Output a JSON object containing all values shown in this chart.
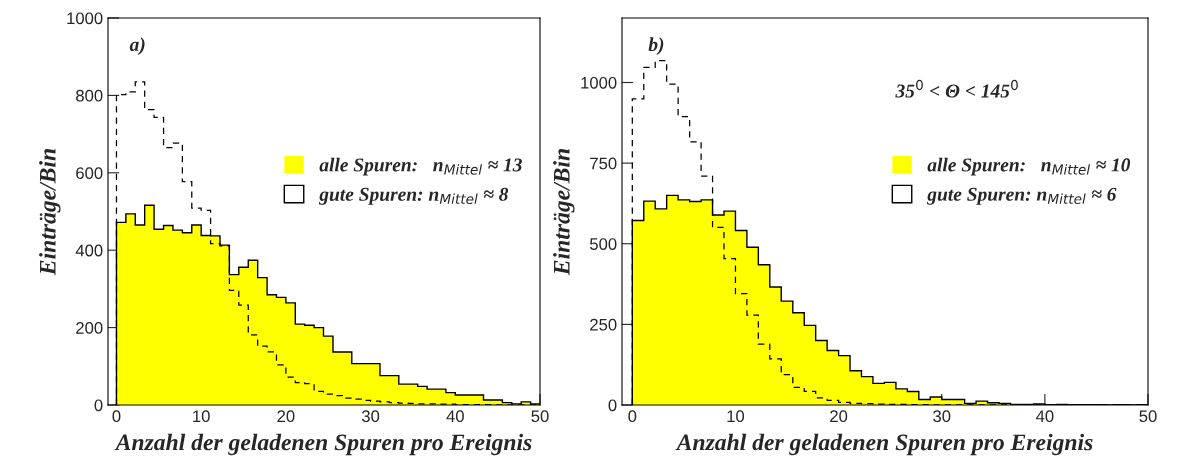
{
  "chart_data": [
    {
      "type": "histogram",
      "ylabel": "Einträge/Bin",
      "xlabel": "Anzahl der geladenen Spuren pro Ereignis",
      "bins": [
        0,
        1.11,
        2.22,
        3.33,
        4.44,
        5.56,
        6.67,
        7.78,
        8.89,
        10,
        11.11,
        12.22,
        13.33,
        14.44,
        15.56,
        16.67,
        17.78,
        18.89,
        20,
        21.11,
        22.22,
        23.33,
        24.44,
        25.56,
        26.67,
        27.78,
        28.89,
        30,
        31.11,
        32.22,
        33.33,
        34.44,
        35.56,
        36.67,
        37.78,
        38.89,
        40,
        41.11,
        42.22,
        43.33,
        44.44,
        45.56,
        46.67,
        47.78,
        48.89,
        50
      ],
      "series": [
        {
          "name": "alle Spuren:   n$_{Mittel}$ ≈ 13",
          "color": "#ffff00",
          "line_style": "solid",
          "values": [
            472,
            494,
            465,
            516,
            454,
            464,
            452,
            445,
            465,
            438,
            437,
            413,
            337,
            356,
            374,
            329,
            285,
            278,
            264,
            209,
            206,
            200,
            178,
            137,
            137,
            107,
            107,
            107,
            76,
            76,
            54,
            54,
            48,
            41,
            41,
            32,
            26,
            26,
            26,
            13,
            13,
            6,
            3,
            8,
            3
          ]
        },
        {
          "name": "gute Spuren: n$_{Mittel}$ ≈ 8",
          "color": "#000000",
          "line_style": "dashed",
          "values": [
            802,
            809,
            835,
            763,
            743,
            665,
            677,
            577,
            509,
            503,
            417,
            411,
            296,
            258,
            181,
            152,
            137,
            104,
            72,
            58,
            55,
            35,
            28,
            24,
            18,
            15,
            12,
            10,
            8,
            6,
            5,
            4,
            3,
            3,
            2,
            2,
            1,
            1,
            1,
            1,
            0,
            0,
            0,
            0,
            0
          ]
        }
      ],
      "xlim": [
        -1,
        50
      ],
      "xticks": [
        0,
        10,
        20,
        30,
        40,
        50
      ],
      "ylim": [
        0,
        1000
      ],
      "yticks": [
        0,
        200,
        400,
        600,
        800,
        1000
      ],
      "legend": "right",
      "annotations": [
        "a)"
      ]
    },
    {
      "type": "histogram",
      "ylabel": "Einträge/Bin",
      "xlabel": "Anzahl der geladenen Spuren pro Ereignis",
      "bins": [
        0,
        1.11,
        2.22,
        3.33,
        4.44,
        5.56,
        6.67,
        7.78,
        8.89,
        10,
        11.11,
        12.22,
        13.33,
        14.44,
        15.56,
        16.67,
        17.78,
        18.89,
        20,
        21.11,
        22.22,
        23.33,
        24.44,
        25.56,
        26.67,
        27.78,
        28.89,
        30,
        31.11,
        32.22,
        33.33,
        34.44,
        35.56,
        36.67,
        37.78,
        38.89,
        40,
        41.11,
        42.22,
        43.33,
        44.44,
        45.56,
        46.67,
        47.78,
        48.89,
        50
      ],
      "series": [
        {
          "name": "alle Spuren:   n$_{Mittel}$ ≈ 10",
          "color": "#ffff00",
          "line_style": "solid",
          "values": [
            572,
            632,
            608,
            650,
            636,
            631,
            636,
            589,
            601,
            541,
            489,
            435,
            366,
            322,
            286,
            247,
            200,
            169,
            153,
            106,
            88,
            67,
            70,
            50,
            42,
            17,
            25,
            17,
            17,
            5,
            12,
            7,
            5,
            2,
            2,
            3,
            1,
            2,
            1,
            1,
            1,
            0,
            1,
            0,
            1
          ]
        },
        {
          "name": "gute Spuren: n$_{Mittel}$ ≈ 6",
          "color": "#000000",
          "line_style": "dashed",
          "values": [
            949,
            1047,
            1068,
            995,
            894,
            816,
            710,
            551,
            454,
            345,
            279,
            189,
            143,
            94,
            55,
            42,
            22,
            14,
            8,
            5,
            4,
            3,
            2,
            2,
            1,
            1,
            0,
            0,
            0,
            0,
            0,
            0,
            0,
            0,
            0,
            0,
            0,
            0,
            0,
            0,
            0,
            0,
            0,
            0,
            0
          ]
        }
      ],
      "xlim": [
        -1,
        50
      ],
      "xticks": [
        0,
        10,
        20,
        30,
        40,
        50
      ],
      "ylim": [
        0,
        1200
      ],
      "yticks": [
        0,
        250,
        500,
        750,
        1000
      ],
      "legend": "right",
      "annotations": [
        "b)",
        "35$^{0}$ < Θ < 145$^{0}$"
      ]
    }
  ]
}
